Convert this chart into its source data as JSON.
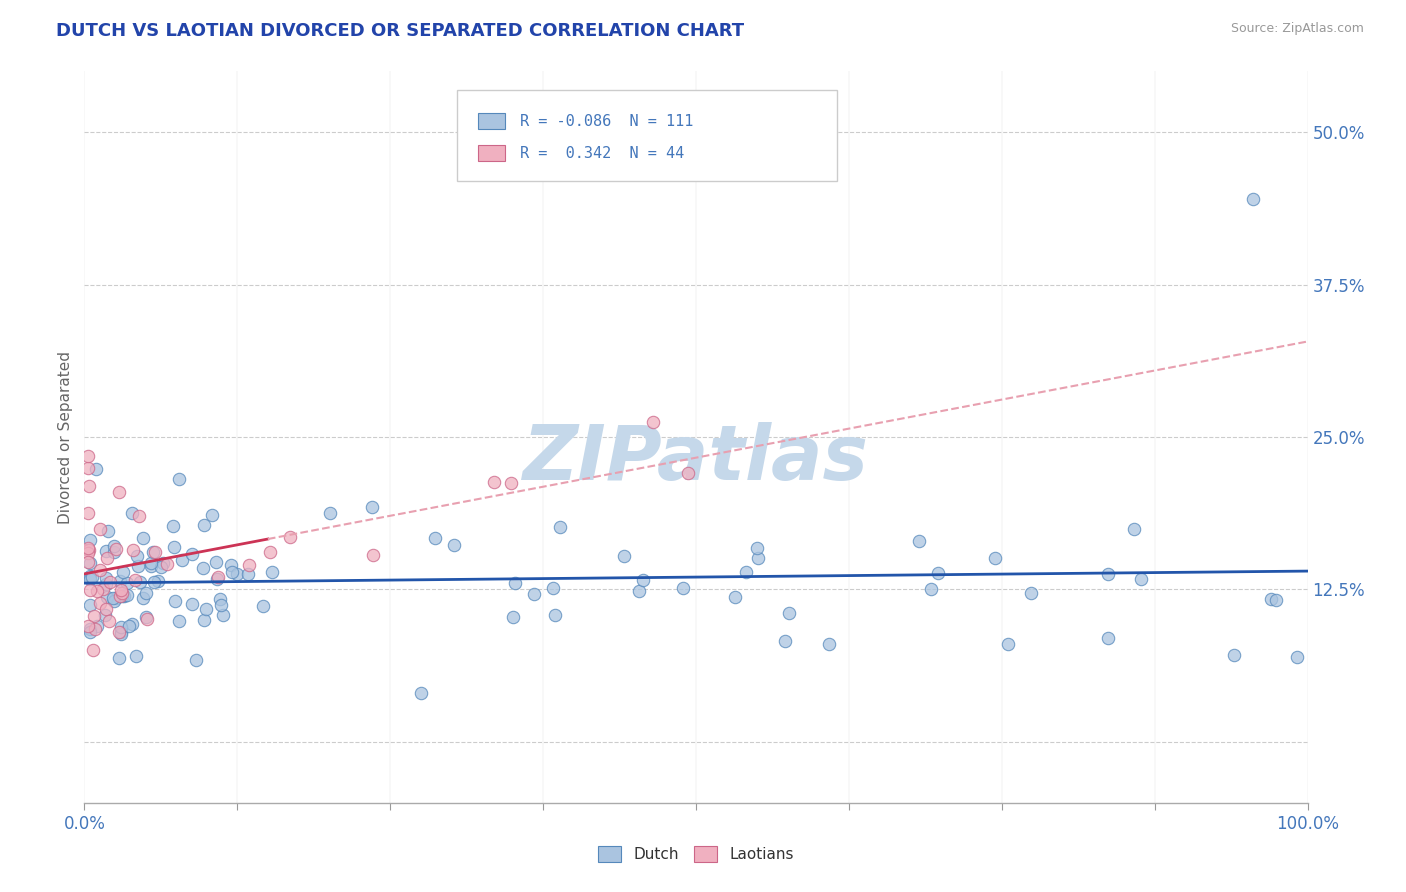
{
  "title": "DUTCH VS LAOTIAN DIVORCED OR SEPARATED CORRELATION CHART",
  "source": "Source: ZipAtlas.com",
  "ylabel": "Divorced or Separated",
  "xlim": [
    0.0,
    1.0
  ],
  "ylim": [
    -0.05,
    0.55
  ],
  "xticks": [
    0.0,
    0.125,
    0.25,
    0.375,
    0.5,
    0.625,
    0.75,
    0.875,
    1.0
  ],
  "xticklabels": [
    "0.0%",
    "",
    "",
    "",
    "",
    "",
    "",
    "",
    "100.0%"
  ],
  "yticks": [
    0.0,
    0.125,
    0.25,
    0.375,
    0.5
  ],
  "yticklabels": [
    "",
    "12.5%",
    "25.0%",
    "37.5%",
    "50.0%"
  ],
  "dutch_color": "#aac4e0",
  "dutch_edge_color": "#5588bb",
  "laotian_color": "#f0b0c0",
  "laotian_edge_color": "#cc6688",
  "trend_dutch_color": "#2255aa",
  "trend_laotian_color": "#cc3355",
  "trend_laotian_dashed_color": "#e8a0b0",
  "watermark_color": "#c5d8ea",
  "legend_r_dutch": "-0.086",
  "legend_n_dutch": "111",
  "legend_r_laotian": "0.342",
  "legend_n_laotian": "44",
  "background_color": "#ffffff",
  "grid_color": "#cccccc",
  "tick_label_color": "#4477bb",
  "title_color": "#2244aa",
  "ylabel_color": "#666666",
  "source_color": "#999999"
}
